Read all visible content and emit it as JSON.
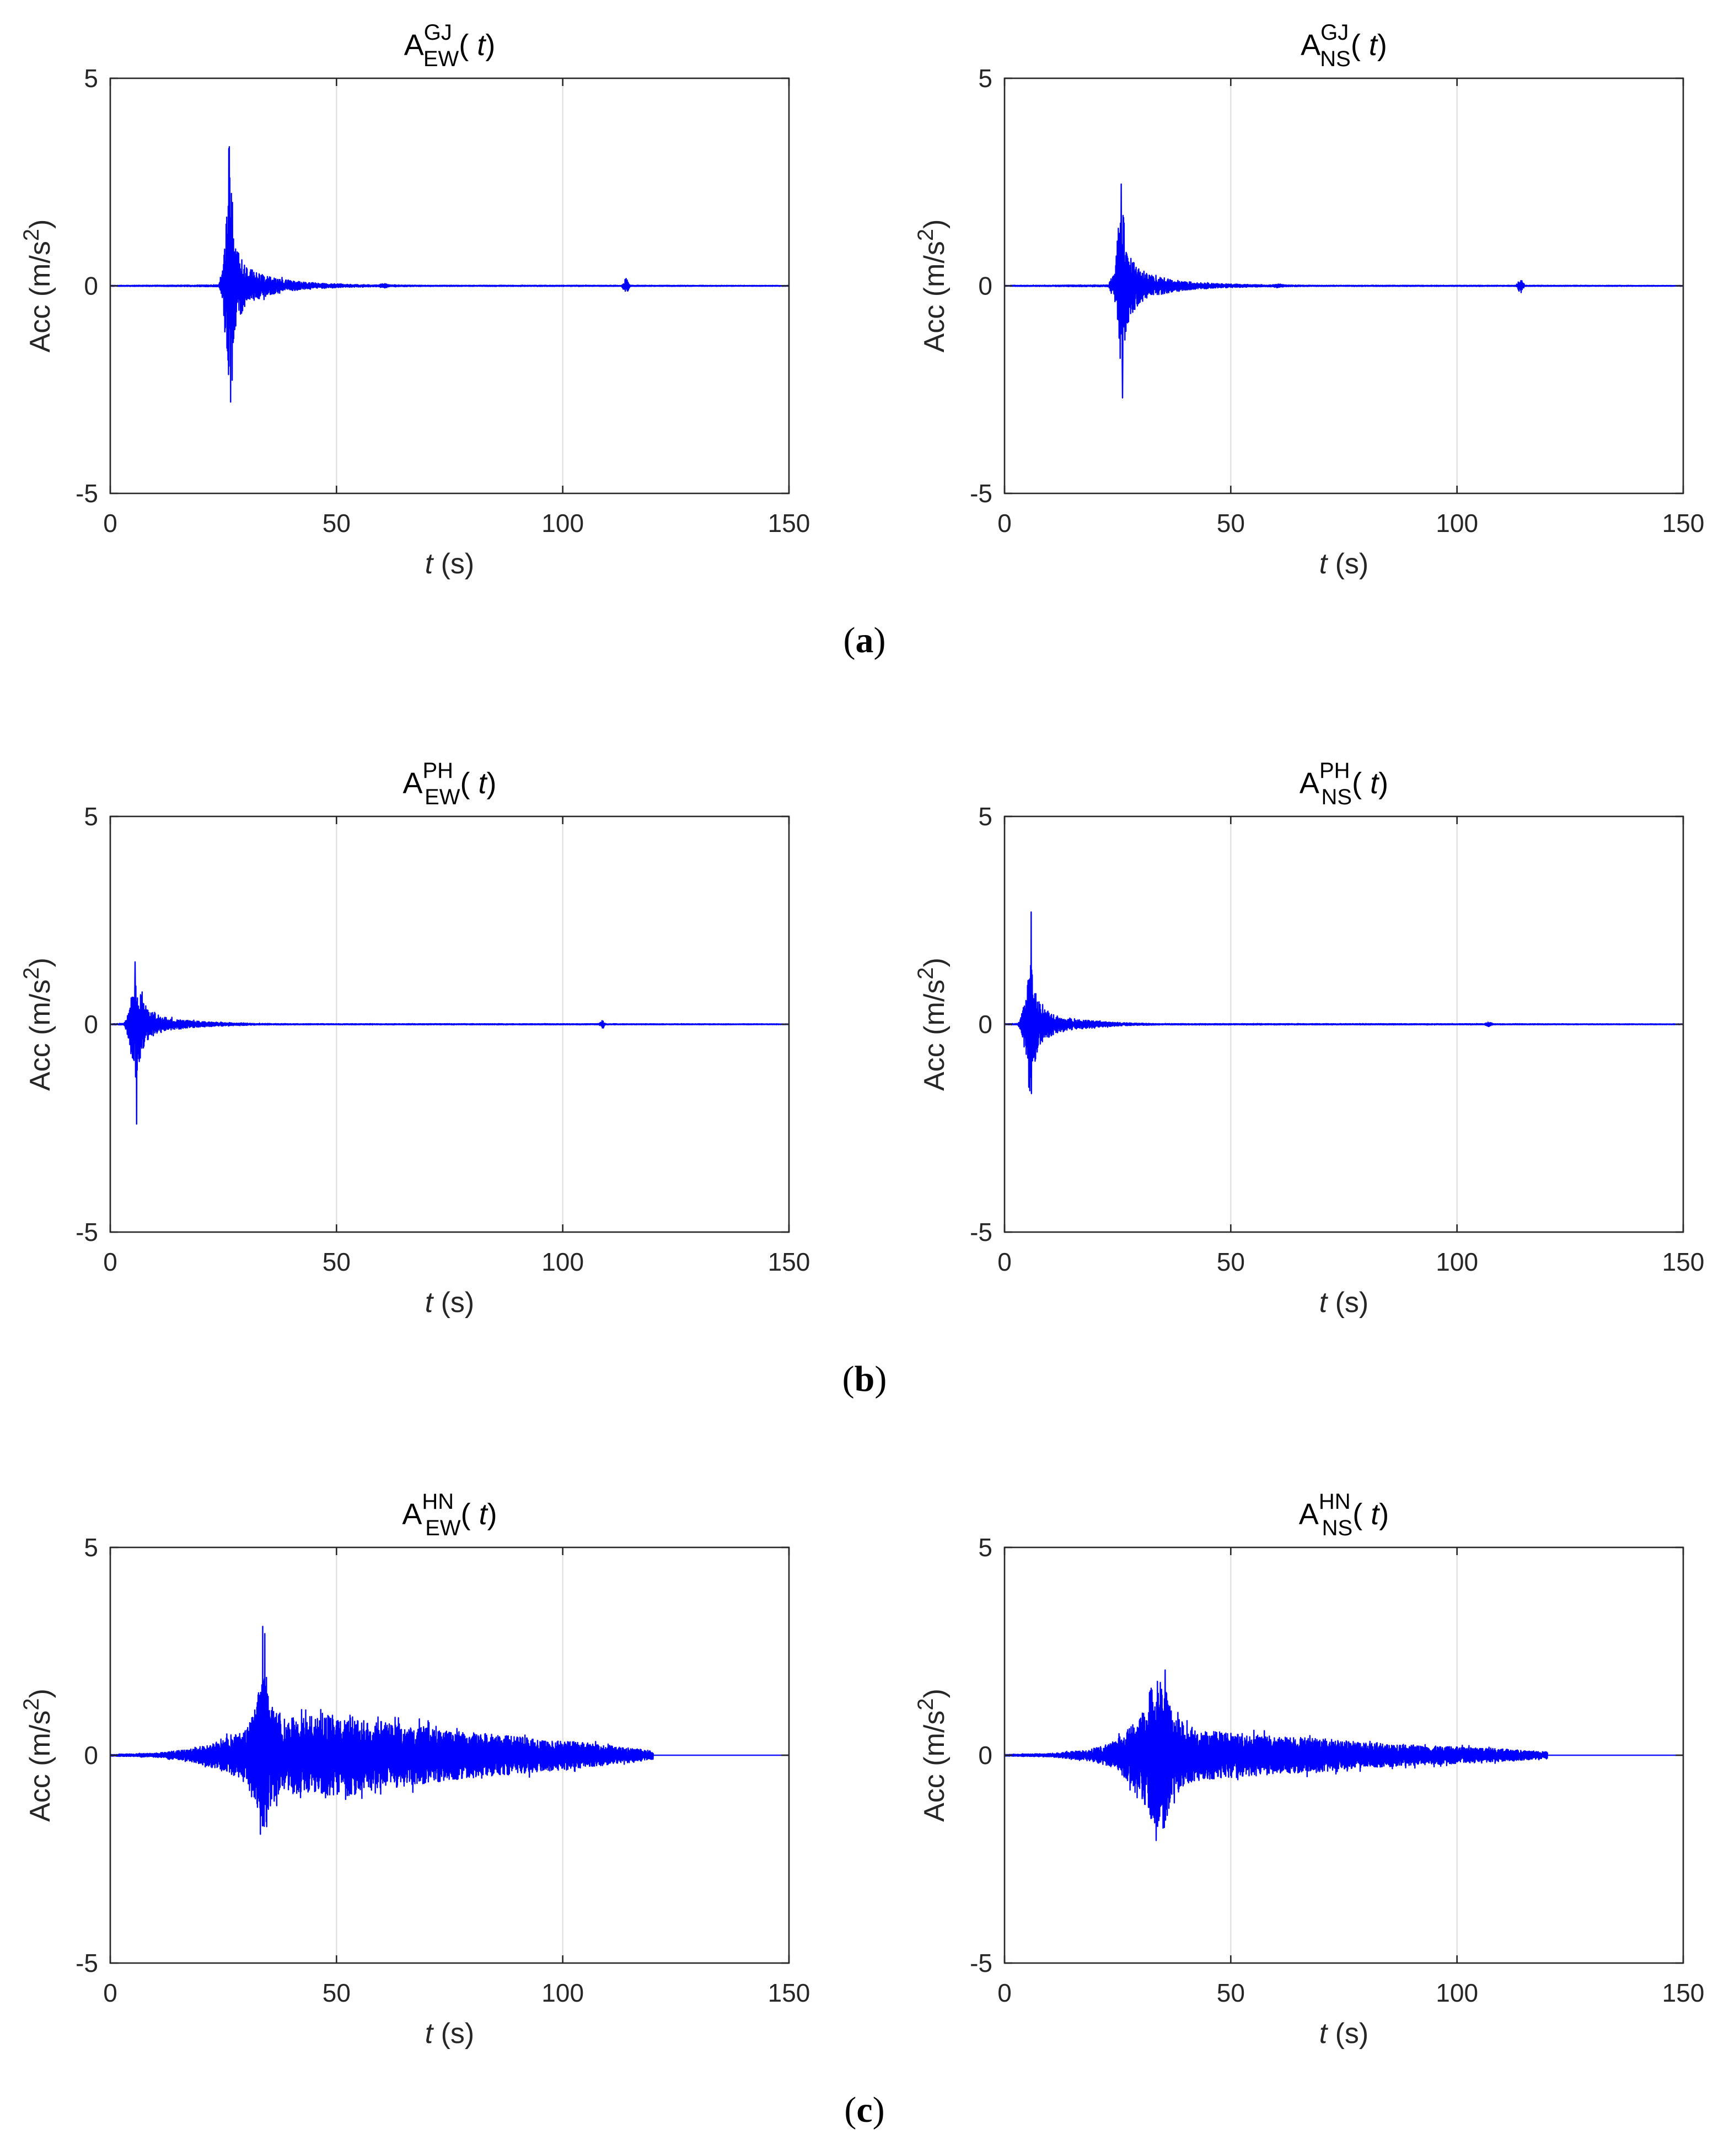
{
  "chart_data": [
    {
      "panel": "a",
      "type": "line",
      "title": {
        "base": "A",
        "sup": "GJ",
        "sub": "EW",
        "arg": "( t)"
      },
      "xlabel": {
        "var": "t",
        "unit": "(s)"
      },
      "ylabel": "Acc (m/s",
      "ylabel_sup": "2",
      "ylabel_close": ")",
      "xlim": [
        0,
        150
      ],
      "ylim": [
        -5,
        5
      ],
      "xticks": [
        "0",
        "50",
        "100",
        "150"
      ],
      "yticks": [
        "5",
        "0",
        "-5"
      ],
      "grid": true,
      "signal_duration": 150,
      "envelope": [
        [
          0,
          0.01
        ],
        [
          24,
          0.02
        ],
        [
          25,
          0.5
        ],
        [
          25.8,
          2.0
        ],
        [
          26.2,
          3.4
        ],
        [
          26.6,
          2.6
        ],
        [
          27.2,
          1.4
        ],
        [
          28,
          0.9
        ],
        [
          30,
          0.45
        ],
        [
          33,
          0.3
        ],
        [
          37,
          0.18
        ],
        [
          42,
          0.1
        ],
        [
          48,
          0.05
        ],
        [
          55,
          0.03
        ],
        [
          59,
          0.02
        ],
        [
          60.5,
          0.06
        ],
        [
          62,
          0.02
        ],
        [
          70,
          0.012
        ],
        [
          113,
          0.012
        ],
        [
          114,
          0.2
        ],
        [
          115,
          0.012
        ],
        [
          150,
          0.008
        ]
      ],
      "peaks": [
        {
          "t": 26.3,
          "a": 3.35
        },
        {
          "t": 26.6,
          "a": -2.8
        }
      ]
    },
    {
      "panel": "a",
      "type": "line",
      "title": {
        "base": "A",
        "sup": "GJ",
        "sub": "NS",
        "arg": "( t)"
      },
      "xlabel": {
        "var": "t",
        "unit": "(s)"
      },
      "ylabel": "Acc (m/s",
      "ylabel_sup": "2",
      "ylabel_close": ")",
      "xlim": [
        0,
        150
      ],
      "ylim": [
        -5,
        5
      ],
      "xticks": [
        "0",
        "50",
        "100",
        "150"
      ],
      "yticks": [
        "5",
        "0",
        "-5"
      ],
      "grid": true,
      "signal_duration": 150,
      "envelope": [
        [
          0,
          0.01
        ],
        [
          23,
          0.02
        ],
        [
          24.5,
          0.5
        ],
        [
          25.3,
          1.6
        ],
        [
          25.8,
          2.5
        ],
        [
          26.3,
          1.8
        ],
        [
          27,
          1.0
        ],
        [
          28,
          0.7
        ],
        [
          30,
          0.4
        ],
        [
          33,
          0.25
        ],
        [
          37,
          0.15
        ],
        [
          42,
          0.08
        ],
        [
          48,
          0.05
        ],
        [
          55,
          0.03
        ],
        [
          59,
          0.02
        ],
        [
          60.5,
          0.05
        ],
        [
          62,
          0.02
        ],
        [
          70,
          0.012
        ],
        [
          113,
          0.012
        ],
        [
          114,
          0.18
        ],
        [
          115,
          0.012
        ],
        [
          150,
          0.008
        ]
      ],
      "peaks": [
        {
          "t": 25.8,
          "a": 2.45
        },
        {
          "t": 26.1,
          "a": -2.7
        }
      ]
    },
    {
      "panel": "b",
      "type": "line",
      "title": {
        "base": "A",
        "sup": "PH",
        "sub": "EW",
        "arg": "( t)"
      },
      "xlabel": {
        "var": "t",
        "unit": "(s)"
      },
      "ylabel": "Acc (m/s",
      "ylabel_sup": "2",
      "ylabel_close": ")",
      "xlim": [
        0,
        150
      ],
      "ylim": [
        -5,
        5
      ],
      "xticks": [
        "0",
        "50",
        "100",
        "150"
      ],
      "yticks": [
        "5",
        "0",
        "-5"
      ],
      "grid": true,
      "signal_duration": 150,
      "envelope": [
        [
          0,
          0.01
        ],
        [
          3,
          0.02
        ],
        [
          4,
          0.35
        ],
        [
          5,
          1.0
        ],
        [
          5.6,
          1.5
        ],
        [
          6.2,
          1.2
        ],
        [
          7,
          0.7
        ],
        [
          8,
          0.4
        ],
        [
          10,
          0.25
        ],
        [
          13,
          0.15
        ],
        [
          18,
          0.08
        ],
        [
          25,
          0.04
        ],
        [
          32,
          0.02
        ],
        [
          40,
          0.012
        ],
        [
          108,
          0.012
        ],
        [
          108.8,
          0.1
        ],
        [
          109.5,
          0.012
        ],
        [
          150,
          0.008
        ]
      ],
      "peaks": [
        {
          "t": 5.5,
          "a": 1.5
        },
        {
          "t": 5.8,
          "a": -2.4
        }
      ]
    },
    {
      "panel": "b",
      "type": "line",
      "title": {
        "base": "A",
        "sup": "PH",
        "sub": "NS",
        "arg": "( t)"
      },
      "xlabel": {
        "var": "t",
        "unit": "(s)"
      },
      "ylabel": "Acc (m/s",
      "ylabel_sup": "2",
      "ylabel_close": ")",
      "xlim": [
        0,
        150
      ],
      "ylim": [
        -5,
        5
      ],
      "xticks": [
        "0",
        "50",
        "100",
        "150"
      ],
      "yticks": [
        "5",
        "0",
        "-5"
      ],
      "grid": true,
      "signal_duration": 150,
      "envelope": [
        [
          0,
          0.01
        ],
        [
          3,
          0.02
        ],
        [
          4,
          0.35
        ],
        [
          5,
          0.9
        ],
        [
          5.8,
          2.0
        ],
        [
          6.5,
          1.1
        ],
        [
          7.5,
          0.6
        ],
        [
          9,
          0.35
        ],
        [
          12,
          0.2
        ],
        [
          16,
          0.12
        ],
        [
          22,
          0.06
        ],
        [
          28,
          0.03
        ],
        [
          35,
          0.015
        ],
        [
          106,
          0.012
        ],
        [
          107,
          0.06
        ],
        [
          108,
          0.012
        ],
        [
          150,
          0.008
        ]
      ],
      "peaks": [
        {
          "t": 5.9,
          "a": 2.7
        },
        {
          "t": 5.6,
          "a": -1.6
        }
      ]
    },
    {
      "panel": "c",
      "type": "line",
      "title": {
        "base": "A",
        "sup": "HN",
        "sub": "EW",
        "arg": "( t)"
      },
      "xlabel": {
        "var": "t",
        "unit": "(s)"
      },
      "ylabel": "Acc (m/s",
      "ylabel_sup": "2",
      "ylabel_close": ")",
      "xlim": [
        0,
        150
      ],
      "ylim": [
        -5,
        5
      ],
      "xticks": [
        "0",
        "50",
        "100",
        "150"
      ],
      "yticks": [
        "5",
        "0",
        "-5"
      ],
      "grid": true,
      "signal_duration": 120,
      "envelope": [
        [
          0,
          0.02
        ],
        [
          10,
          0.05
        ],
        [
          18,
          0.15
        ],
        [
          24,
          0.35
        ],
        [
          30,
          0.6
        ],
        [
          33,
          1.6
        ],
        [
          34,
          2.6
        ],
        [
          35,
          1.3
        ],
        [
          38,
          0.9
        ],
        [
          45,
          0.95
        ],
        [
          52,
          1.0
        ],
        [
          58,
          0.85
        ],
        [
          65,
          0.75
        ],
        [
          75,
          0.6
        ],
        [
          85,
          0.5
        ],
        [
          95,
          0.4
        ],
        [
          105,
          0.3
        ],
        [
          115,
          0.18
        ],
        [
          120,
          0.1
        ]
      ],
      "peaks": [
        {
          "t": 33.7,
          "a": 3.1
        },
        {
          "t": 33.2,
          "a": -1.9
        }
      ]
    },
    {
      "panel": "c",
      "type": "line",
      "title": {
        "base": "A",
        "sup": "HN",
        "sub": "NS",
        "arg": "( t)"
      },
      "xlabel": {
        "var": "t",
        "unit": "(s)"
      },
      "ylabel": "Acc (m/s",
      "ylabel_sup": "2",
      "ylabel_close": ")",
      "xlim": [
        0,
        150
      ],
      "ylim": [
        -5,
        5
      ],
      "xticks": [
        "0",
        "50",
        "100",
        "150"
      ],
      "yticks": [
        "5",
        "0",
        "-5"
      ],
      "grid": true,
      "signal_duration": 120,
      "envelope": [
        [
          0,
          0.02
        ],
        [
          10,
          0.04
        ],
        [
          18,
          0.12
        ],
        [
          24,
          0.3
        ],
        [
          30,
          0.9
        ],
        [
          33,
          1.8
        ],
        [
          35,
          1.9
        ],
        [
          37,
          1.0
        ],
        [
          42,
          0.6
        ],
        [
          50,
          0.55
        ],
        [
          60,
          0.45
        ],
        [
          70,
          0.4
        ],
        [
          80,
          0.3
        ],
        [
          90,
          0.25
        ],
        [
          100,
          0.2
        ],
        [
          110,
          0.15
        ],
        [
          120,
          0.08
        ]
      ],
      "peaks": [
        {
          "t": 35.5,
          "a": 2.05
        },
        {
          "t": 33.5,
          "a": -2.05
        }
      ]
    }
  ],
  "panel_labels": [
    "a",
    "b",
    "c"
  ]
}
